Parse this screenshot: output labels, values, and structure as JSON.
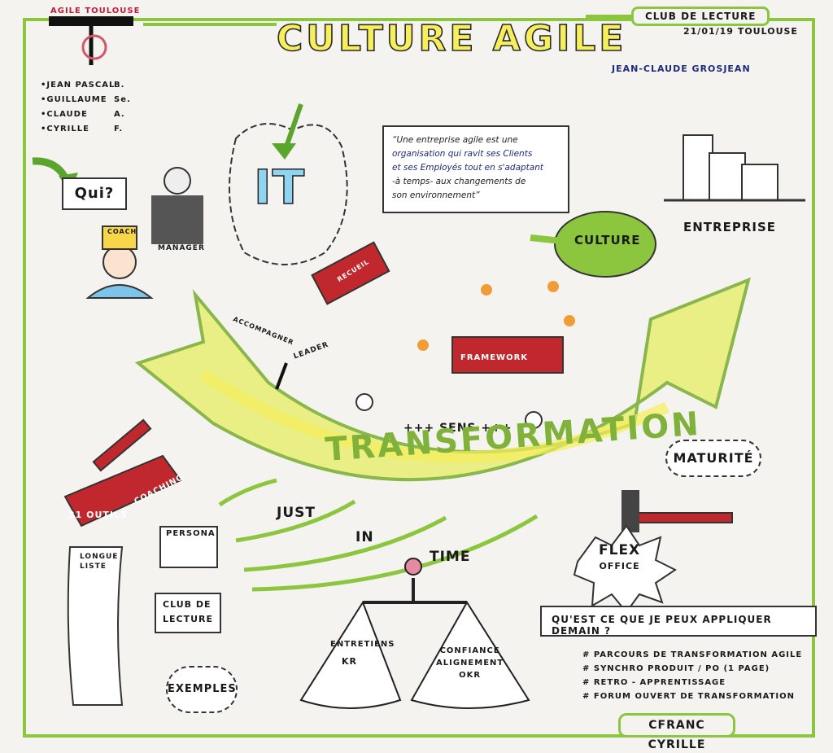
{
  "header": {
    "title": "CULTURE AGILE",
    "club": "CLUB DE LECTURE",
    "date": "21/01/19",
    "city": "TOULOUSE",
    "author": "JEAN-CLAUDE GROSJEAN",
    "logo": "AGILE TOULOUSE"
  },
  "team": {
    "names": [
      "•JEAN PASCAL",
      "•GUILLAUME",
      "•CLAUDE",
      "•CYRILLE"
    ],
    "initials": [
      "B.",
      "Se.",
      "A.",
      "F."
    ]
  },
  "left": {
    "qui": "Qui?",
    "coach": "COACH",
    "manager": "MANAGER"
  },
  "center": {
    "it": "IT",
    "recueil": "RECUEIL",
    "quote_lines": [
      "“Une entreprise agile est une",
      "organisation qui ravit ses Clients",
      "et ses Employés tout en s'adaptant",
      "-à temps- aux changements de",
      "son environnement”"
    ],
    "culture": "CULTURE",
    "entreprise": "ENTREPRISE",
    "framework": "FRAMEWORK"
  },
  "arc": {
    "accompagner": "ACCOMPAGNER",
    "leader": "LEADER",
    "sens": "+++ SENS +++",
    "transformation": "TRANSFORMATION",
    "maturite": "MATURITÉ"
  },
  "lower": {
    "toolbox_count": "31 OUTILS",
    "toolbox_label": "COACHING",
    "just": "JUST",
    "in": "IN",
    "time": "TIME",
    "flex": "FLEX",
    "office": "OFFICE",
    "persona": "PERSONA",
    "longue_liste_1": "LONGUE",
    "longue_liste_2": "LISTE",
    "club_1": "CLUB DE",
    "club_2": "LECTURE",
    "exemples": "EXEMPLES",
    "entretiens": "ENTRETIENS",
    "kr": "KR",
    "confiance_lines": [
      "CONFIANCE",
      "ALIGNEMENT",
      "OKR"
    ]
  },
  "actions": {
    "question": "QU'EST CE QUE JE PEUX APPLIQUER DEMAIN ?",
    "items": [
      "# PARCOURS DE TRANSFORMATION AGILE",
      "# SYNCHRO PRODUIT / PO (1 PAGE)",
      "# RETRO - APPRENTISSAGE",
      "# FORUM OUVERT DE TRANSFORMATION"
    ],
    "signature": "CFRANC CYRILLE"
  },
  "colors": {
    "green": "#8cc63f",
    "yellow": "#f6ee5a",
    "red": "#c0282e",
    "blue": "#1e2a7a"
  }
}
